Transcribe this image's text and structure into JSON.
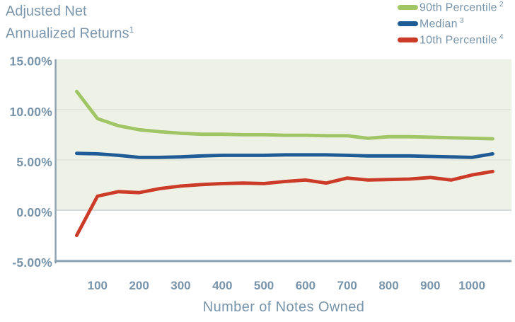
{
  "title": {
    "line1": "Adjusted Net",
    "line2": "Annualized Returns",
    "superscript": "1"
  },
  "legend": {
    "items": [
      {
        "label": "90th Percentile",
        "superscript": "2",
        "color": "#a0c564"
      },
      {
        "label": "Median",
        "superscript": "3",
        "color": "#1e5b97"
      },
      {
        "label": "10th Percentile",
        "superscript": "4",
        "color": "#cc3a28"
      }
    ]
  },
  "chart_data": {
    "type": "line",
    "title": "Adjusted Net Annualized Returns",
    "xlabel": "Number of Notes Owned",
    "ylabel": "",
    "x": [
      50,
      100,
      150,
      200,
      250,
      300,
      350,
      400,
      450,
      500,
      550,
      600,
      650,
      700,
      750,
      800,
      850,
      900,
      950,
      1000,
      1050
    ],
    "series": [
      {
        "name": "90th Percentile",
        "color": "#a0c564",
        "values": [
          11.8,
          9.1,
          8.4,
          8.0,
          7.8,
          7.65,
          7.55,
          7.55,
          7.5,
          7.5,
          7.45,
          7.45,
          7.4,
          7.4,
          7.15,
          7.3,
          7.3,
          7.25,
          7.2,
          7.15,
          7.1
        ]
      },
      {
        "name": "Median",
        "color": "#1e5b97",
        "values": [
          5.65,
          5.6,
          5.45,
          5.25,
          5.25,
          5.3,
          5.4,
          5.45,
          5.45,
          5.45,
          5.5,
          5.5,
          5.5,
          5.45,
          5.4,
          5.4,
          5.4,
          5.35,
          5.3,
          5.25,
          5.6
        ]
      },
      {
        "name": "10th Percentile",
        "color": "#cc3a28",
        "values": [
          -2.5,
          1.4,
          1.85,
          1.75,
          2.15,
          2.4,
          2.55,
          2.65,
          2.7,
          2.65,
          2.85,
          3.0,
          2.7,
          3.2,
          3.0,
          3.05,
          3.1,
          3.25,
          3.0,
          3.5,
          3.85
        ]
      }
    ],
    "x_ticks": [
      100,
      200,
      300,
      400,
      500,
      600,
      700,
      800,
      900,
      1000
    ],
    "y_ticks": [
      {
        "value": 15,
        "label": "15.00%"
      },
      {
        "value": 10,
        "label": "10.00%"
      },
      {
        "value": 5,
        "label": "5.00%"
      },
      {
        "value": 0,
        "label": "0.00%"
      },
      {
        "value": -5,
        "label": "-5.00%"
      }
    ],
    "xlim": [
      0,
      1095
    ],
    "ylim": [
      -5,
      15
    ],
    "grid": "horizontal",
    "legend_position": "top-right",
    "plot_bg": "#eef1e5",
    "grid_color": "#d8dcd1",
    "zero_line_color": "#c3cdd2",
    "axis_color": "#8ba1b2",
    "tick_label_color": "#7894aa"
  }
}
